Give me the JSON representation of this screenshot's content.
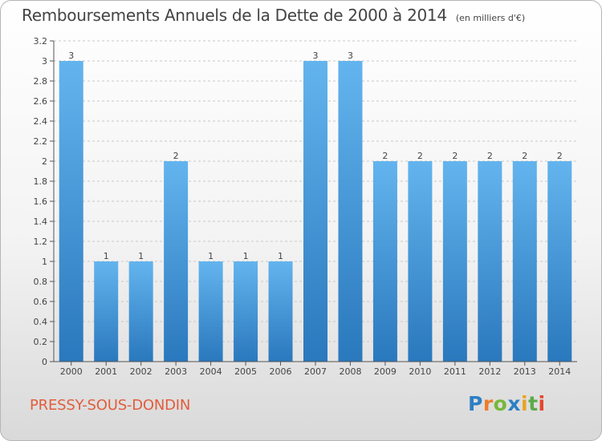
{
  "title": "Remboursements Annuels de la Dette de 2000 à 2014",
  "unit_note": "(en milliers d'€)",
  "location": "PRESSY-SOUS-DONDIN",
  "brand": {
    "letters": [
      "P",
      "r",
      "o",
      "x",
      "i",
      "t",
      "i"
    ],
    "colors": [
      "#2e7fc3",
      "#ed7d2b",
      "#76b83a",
      "#2e7fc3",
      "#e7a424",
      "#5bab4a",
      "#e4472e"
    ]
  },
  "colors": {
    "bar_light": "#63b4ee",
    "bar_dark": "#2a78bd",
    "axis": "#555555",
    "grid": "#c8c8c8",
    "location": "#e25d3c"
  },
  "chart_data": {
    "type": "bar",
    "categories": [
      "2000",
      "2001",
      "2002",
      "2003",
      "2004",
      "2005",
      "2006",
      "2007",
      "2008",
      "2009",
      "2010",
      "2011",
      "2012",
      "2013",
      "2014"
    ],
    "values": [
      3,
      1,
      1,
      2,
      1,
      1,
      1,
      3,
      3,
      2,
      2,
      2,
      2,
      2,
      2
    ],
    "data_labels": [
      "3",
      "1",
      "1",
      "2",
      "1",
      "1",
      "1",
      "3",
      "3",
      "2",
      "2",
      "2",
      "2",
      "2",
      "2"
    ],
    "ylim": [
      0,
      3.2
    ],
    "yticks": [
      0,
      0.2,
      0.4,
      0.6,
      0.8,
      1,
      1.2,
      1.4,
      1.6,
      1.8,
      2,
      2.2,
      2.4,
      2.6,
      2.8,
      3,
      3.2
    ],
    "ytick_labels": [
      "0",
      "0.2",
      "0.4",
      "0.6",
      "0.8",
      "1",
      "1.2",
      "1.4",
      "1.6",
      "1.8",
      "2",
      "2.2",
      "2.4",
      "2.6",
      "2.8",
      "3",
      "3.2"
    ],
    "grid": "dashed-horizontal",
    "xlabel": "",
    "ylabel": ""
  }
}
